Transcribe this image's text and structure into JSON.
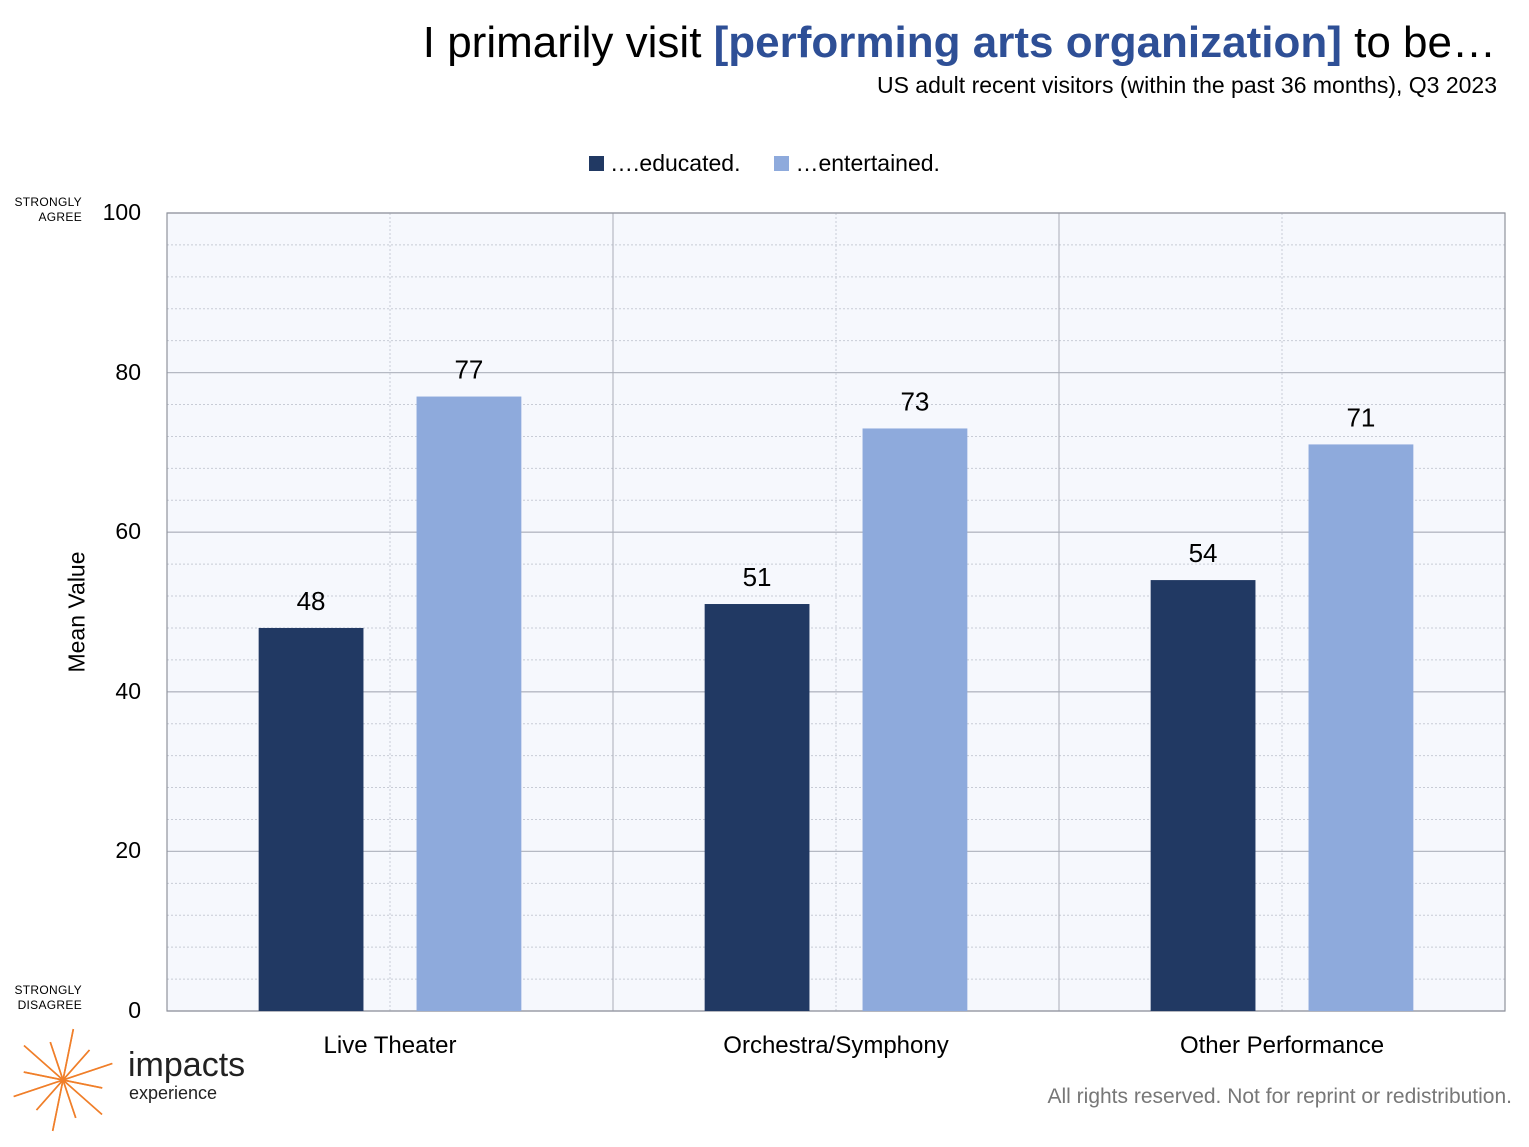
{
  "header": {
    "title_prefix": "I primarily visit ",
    "title_highlight": "[performing arts organization]",
    "title_suffix": " to be…",
    "subtitle": "US adult recent visitors (within the past 36 months), Q3 2023"
  },
  "colors": {
    "educated": "#213963",
    "entertained": "#8eaadc",
    "title_highlight": "#2e4f96",
    "plot_background": "#f6f8fd",
    "logo": "#f07f2a"
  },
  "anchors": {
    "top": "STRONGLY\nAGREE",
    "bottom": "STRONGLY\nDISAGREE"
  },
  "chart_data": {
    "type": "bar",
    "categories": [
      "Live Theater",
      "Orchestra/Symphony",
      "Other Performance"
    ],
    "series": [
      {
        "name": "….educated.",
        "values": [
          48,
          51,
          54
        ]
      },
      {
        "name": "…entertained.",
        "values": [
          77,
          73,
          71
        ]
      }
    ],
    "xlabel": "",
    "ylabel": "Mean Value",
    "ylim": [
      0,
      100
    ],
    "yticks": [
      0,
      20,
      40,
      60,
      80,
      100
    ],
    "grid": true,
    "legend_position": "top-center",
    "data_labels": true
  },
  "branding": {
    "logo_icon": "starburst-icon",
    "name": "impacts",
    "sub": "experience",
    "watermark_name": "impacts",
    "watermark_sub": "experience"
  },
  "footer": {
    "notice": "All rights reserved. Not for reprint or redistribution."
  }
}
